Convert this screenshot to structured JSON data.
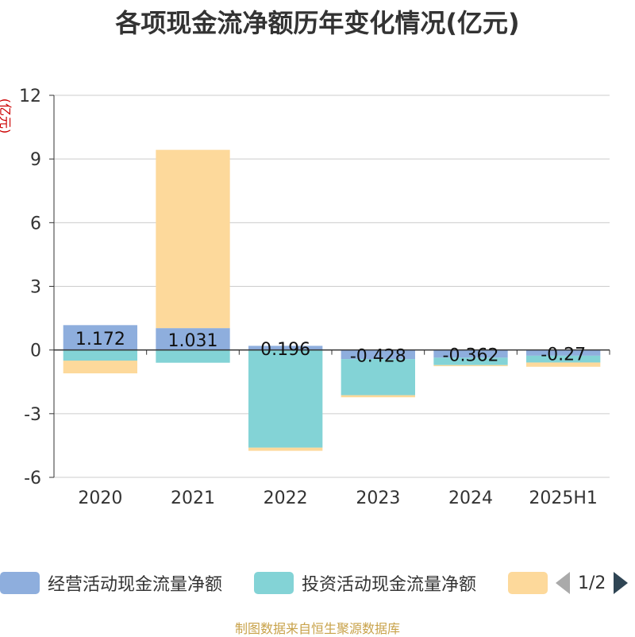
{
  "title": "各项现金流净额历年变化情况(亿元)",
  "unit_label": "(亿元)",
  "source_text": "制图数据来自恒生聚源数据库",
  "legend": {
    "items": [
      {
        "label": "经营活动现金流量净额",
        "color": "#8eaedd"
      },
      {
        "label": "投资活动现金流量净额",
        "color": "#83d3d6"
      },
      {
        "label": "",
        "color": "#fdd99b"
      }
    ],
    "page": "1/2"
  },
  "chart_data": {
    "type": "bar",
    "stacked": true,
    "categories": [
      "2020",
      "2021",
      "2022",
      "2023",
      "2024",
      "2025H1"
    ],
    "ylim": [
      -6,
      12
    ],
    "yticks": [
      12,
      9,
      6,
      3,
      0,
      -3,
      -6
    ],
    "ytick_labels": [
      "12",
      "9",
      "6",
      "3",
      "0",
      "-3",
      "-6"
    ],
    "grid": true,
    "legend_position": "bottom",
    "series": [
      {
        "name": "经营活动现金流量净额",
        "color": "#8eaedd",
        "values": [
          1.172,
          1.031,
          0.196,
          -0.428,
          -0.362,
          -0.27
        ],
        "labels": [
          "1.172",
          "1.031",
          "0.196",
          "-0.428",
          "-0.362",
          "-0.27"
        ]
      },
      {
        "name": "投资活动现金流量净额",
        "color": "#83d3d6",
        "values": [
          -0.5,
          -0.6,
          -4.6,
          -1.7,
          -0.35,
          -0.32
        ]
      },
      {
        "color": "#fdd99b",
        "values": [
          -0.6,
          8.4,
          -0.15,
          -0.1,
          -0.05,
          -0.2
        ]
      }
    ]
  }
}
